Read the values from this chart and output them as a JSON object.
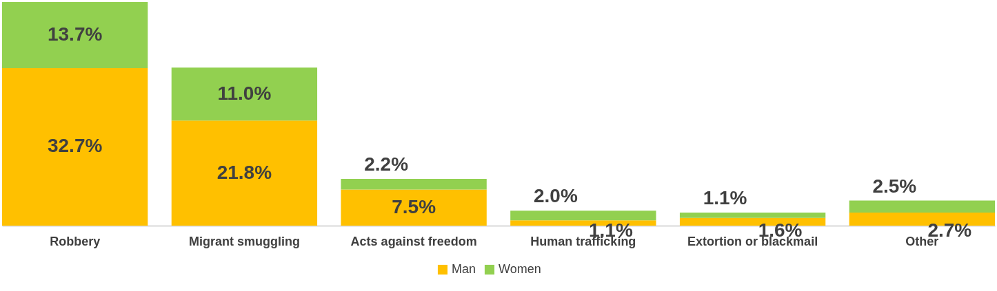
{
  "chart_data": {
    "type": "bar",
    "stacked": true,
    "legend": "bottom",
    "grid": false,
    "categories": [
      "Robbery",
      "Migrant smuggling",
      "Acts against freedom",
      "Human trafficking",
      "Extortion or blackmail",
      "Other"
    ],
    "series": [
      {
        "name": "Man",
        "color": "#ffc000",
        "values": [
          32.7,
          21.8,
          7.5,
          1.1,
          1.6,
          2.7
        ],
        "value_labels": [
          "32.7%",
          "21.8%",
          "7.5%",
          "1.1%",
          "1.6%",
          "2.7%"
        ]
      },
      {
        "name": "Women",
        "color": "#92d050",
        "values": [
          13.7,
          11.0,
          2.2,
          2.0,
          1.1,
          2.5
        ],
        "value_labels": [
          "13.7%",
          "11.0%",
          "2.2%",
          "2.0%",
          "1.1%",
          "2.5%"
        ]
      }
    ]
  }
}
